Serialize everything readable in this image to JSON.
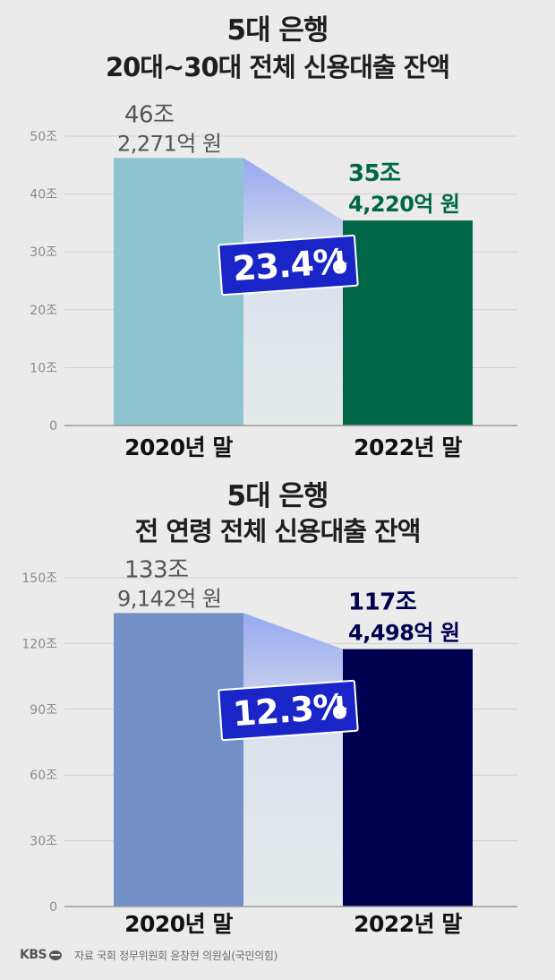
{
  "chart_data": [
    {
      "type": "bar",
      "title_line1": "5대 은행",
      "title_line2": "20대~30대 전체 신용대출 잔액",
      "categories": [
        "2020년 말",
        "2022년 말"
      ],
      "values": [
        46.2271,
        35.422
      ],
      "value_labels": [
        [
          "46조",
          "2,271억 원"
        ],
        [
          "35조",
          "4,220억 원"
        ]
      ],
      "yticks": [
        "0",
        "10조",
        "20조",
        "30조",
        "40조",
        "50조"
      ],
      "ylim": [
        0,
        50
      ],
      "change_label": "23.4%",
      "change_direction": "down",
      "colors": {
        "bar_2020": "#8ec4d0",
        "bar_2022": "#006647",
        "label_2020": "#555555",
        "label_2022": "#006647"
      },
      "grid": true
    },
    {
      "type": "bar",
      "title_line1": "5대 은행",
      "title_line2": "전 연령 전체 신용대출 잔액",
      "categories": [
        "2020년 말",
        "2022년 말"
      ],
      "values": [
        133.9142,
        117.4498
      ],
      "value_labels": [
        [
          "133조",
          "9,142억 원"
        ],
        [
          "117조",
          "4,498억 원"
        ]
      ],
      "yticks": [
        "0",
        "30조",
        "60조",
        "90조",
        "120조",
        "150조"
      ],
      "ylim": [
        0,
        150
      ],
      "change_label": "12.3%",
      "change_direction": "down",
      "colors": {
        "bar_2020": "#7390c6",
        "bar_2022": "#000150",
        "label_2020": "#555555",
        "label_2022": "#000150"
      },
      "grid": true
    }
  ],
  "badge_color": "#1a25c8",
  "footer": {
    "logo": "KBS",
    "source": "자료 국회 정무위원회 윤창현 의원실(국민의힘)"
  }
}
